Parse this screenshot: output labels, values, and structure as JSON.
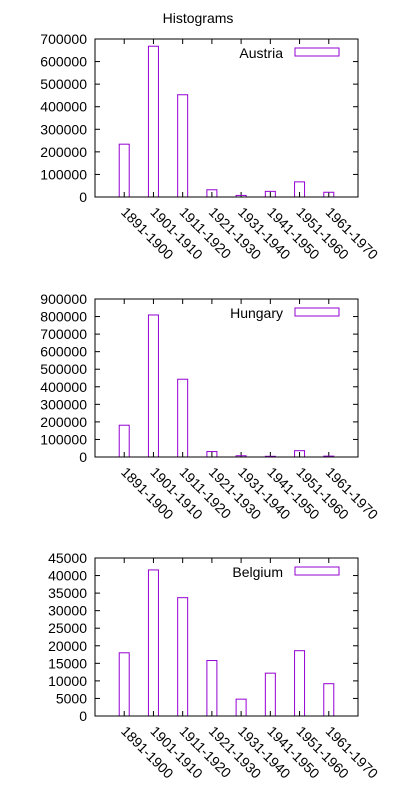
{
  "page_title": "Histograms",
  "bar_color": "#9400d3",
  "chart_data": [
    {
      "type": "bar",
      "legend": "Austria",
      "legend_position": "top-right",
      "categories": [
        "1891-1900",
        "1901-1910",
        "1911-1920",
        "1921-1930",
        "1931-1940",
        "1941-1950",
        "1951-1960",
        "1961-1970"
      ],
      "values": [
        234000,
        668000,
        453000,
        32000,
        7000,
        25000,
        67000,
        21000
      ],
      "ylim": [
        0,
        700000
      ],
      "yticks": [
        "0",
        "100000",
        "200000",
        "300000",
        "400000",
        "500000",
        "600000",
        "700000"
      ],
      "ytick_values": [
        0,
        100000,
        200000,
        300000,
        400000,
        500000,
        600000,
        700000
      ]
    },
    {
      "type": "bar",
      "legend": "Hungary",
      "legend_position": "top-right",
      "categories": [
        "1891-1900",
        "1901-1910",
        "1911-1920",
        "1921-1930",
        "1931-1940",
        "1941-1950",
        "1951-1960",
        "1961-1970"
      ],
      "values": [
        181000,
        809000,
        443000,
        31000,
        7000,
        4000,
        36000,
        5000
      ],
      "ylim": [
        0,
        900000
      ],
      "yticks": [
        "0",
        "100000",
        "200000",
        "300000",
        "400000",
        "500000",
        "600000",
        "700000",
        "800000",
        "900000"
      ],
      "ytick_values": [
        0,
        100000,
        200000,
        300000,
        400000,
        500000,
        600000,
        700000,
        800000,
        900000
      ]
    },
    {
      "type": "bar",
      "legend": "Belgium",
      "legend_position": "top-right",
      "categories": [
        "1891-1900",
        "1901-1910",
        "1911-1920",
        "1921-1930",
        "1931-1940",
        "1941-1950",
        "1951-1960",
        "1961-1970"
      ],
      "values": [
        18000,
        41600,
        33700,
        15800,
        4800,
        12200,
        18600,
        9200
      ],
      "ylim": [
        0,
        45000
      ],
      "yticks": [
        "0",
        "5000",
        "10000",
        "15000",
        "20000",
        "25000",
        "30000",
        "35000",
        "40000",
        "45000"
      ],
      "ytick_values": [
        0,
        5000,
        10000,
        15000,
        20000,
        25000,
        30000,
        35000,
        40000,
        45000
      ]
    }
  ]
}
